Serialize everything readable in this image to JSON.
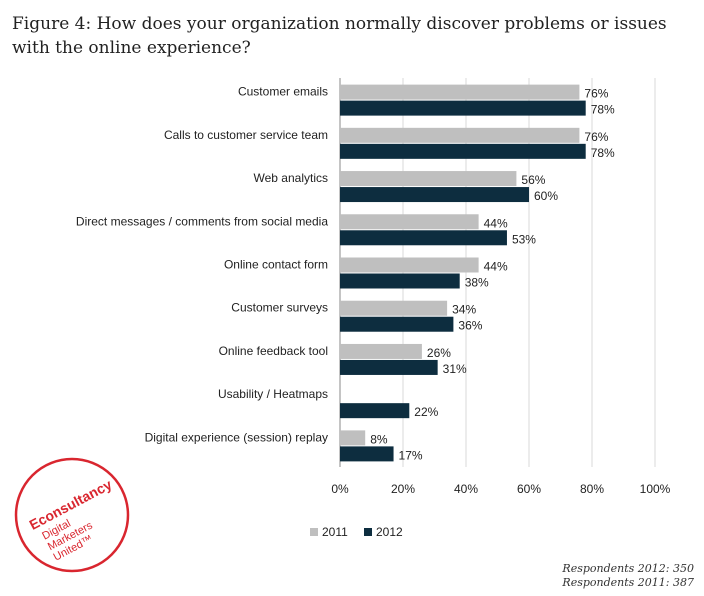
{
  "title": "Figure 4: How does your organization normally discover problems or issues with the online experience?",
  "colors": {
    "series_2011": "#bfbfbf",
    "series_2012": "#0d2d3f",
    "logo_red": "#d9262f"
  },
  "logo": {
    "brand": "Econsultancy",
    "tagline_lines": [
      "Digital",
      "Marketers",
      "United™"
    ]
  },
  "notes": {
    "respondents_2012": "Respondents 2012: 350",
    "respondents_2011": "Respondents 2011: 387"
  },
  "chart_data": {
    "type": "bar",
    "orientation": "horizontal",
    "categories": [
      "Customer emails",
      "Calls to customer service team",
      "Web analytics",
      "Direct messages / comments from social media",
      "Online contact form",
      "Customer surveys",
      "Online feedback tool",
      "Usability / Heatmaps",
      "Digital experience (session) replay"
    ],
    "series": [
      {
        "name": "2011",
        "values": [
          76,
          76,
          56,
          44,
          44,
          34,
          26,
          null,
          8
        ],
        "labels": [
          "76%",
          "76%",
          "56%",
          "44%",
          "44%",
          "34%",
          "26%",
          "",
          "8%"
        ]
      },
      {
        "name": "2012",
        "values": [
          78,
          78,
          60,
          53,
          38,
          36,
          31,
          22,
          17
        ],
        "labels": [
          "78%",
          "78%",
          "60%",
          "53%",
          "38%",
          "36%",
          "31%",
          "22%",
          "17%"
        ]
      }
    ],
    "xlim": [
      0,
      100
    ],
    "xticks": [
      "0%",
      "20%",
      "40%",
      "60%",
      "80%",
      "100%"
    ],
    "grid": "vertical",
    "legend": "bottom"
  }
}
